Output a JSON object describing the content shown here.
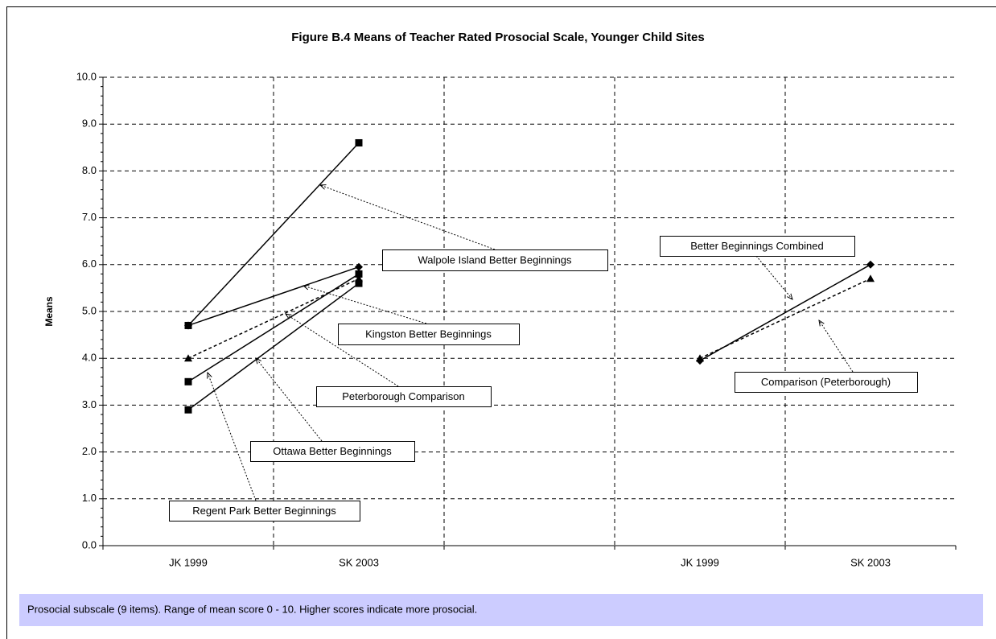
{
  "chart_data": {
    "type": "line",
    "title": "Figure B.4  Means of Teacher Rated Prosocial Scale, Younger Child Sites",
    "y_label": "Means",
    "categories": [
      "JK 1999",
      "SK 2003",
      null,
      "JK 1999",
      "SK 2003"
    ],
    "ylim": [
      0,
      10
    ],
    "yticks": [
      {
        "value": 0,
        "label": "0.0"
      },
      {
        "value": 1,
        "label": "1.0"
      },
      {
        "value": 2,
        "label": "2.0"
      },
      {
        "value": 3,
        "label": "3.0"
      },
      {
        "value": 4,
        "label": "4.0"
      },
      {
        "value": 5,
        "label": "5.0"
      },
      {
        "value": 6,
        "label": "6.0"
      },
      {
        "value": 7,
        "label": "7.0"
      },
      {
        "value": 8,
        "label": "8.0"
      },
      {
        "value": 9,
        "label": "9.0"
      },
      {
        "value": 10,
        "label": "10.0"
      }
    ],
    "grid": true,
    "series": [
      {
        "name": "Walpole Island Better Beginnings",
        "color": "#000000",
        "dash": false,
        "marker": "square",
        "values": [
          4.7,
          8.6,
          null,
          null,
          null
        ]
      },
      {
        "name": "Kingston Better Beginnings",
        "color": "#000000",
        "dash": false,
        "marker": "diamond",
        "values": [
          4.7,
          5.95,
          null,
          null,
          null
        ]
      },
      {
        "name": "Peterborough Comparison",
        "color": "#000000",
        "dash": true,
        "marker": "triangle",
        "values": [
          4.0,
          5.7,
          null,
          null,
          null
        ]
      },
      {
        "name": "Ottawa Better Beginnings",
        "color": "#000000",
        "dash": false,
        "marker": "square",
        "values": [
          3.5,
          5.8,
          null,
          null,
          null
        ]
      },
      {
        "name": "Regent Park Better Beginnings",
        "color": "#000000",
        "dash": false,
        "marker": "square",
        "values": [
          2.9,
          5.6,
          null,
          null,
          null
        ]
      },
      {
        "name": "Better Beginnings Combined",
        "color": "#000000",
        "dash": false,
        "marker": "diamond",
        "values": [
          null,
          null,
          null,
          3.95,
          6.0
        ]
      },
      {
        "name": "Comparison (Peterborough)",
        "color": "#000000",
        "dash": true,
        "marker": "triangle",
        "values": [
          null,
          null,
          null,
          4.0,
          5.7
        ]
      }
    ],
    "footnote": "Prosocial subscale (9 items). Range of mean score 0 - 10. Higher scores indicate more prosocial."
  }
}
